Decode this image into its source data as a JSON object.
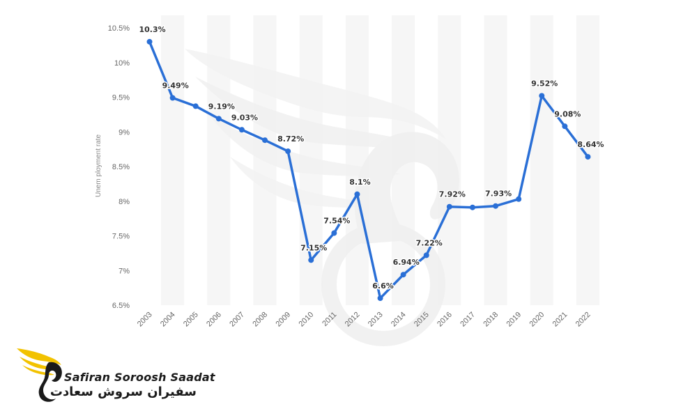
{
  "chart_data": {
    "type": "line",
    "ylabel": "Unem ployment rate",
    "ylim": [
      6.5,
      10.5
    ],
    "yticks": [
      {
        "value": 6.5,
        "label": "6.5%"
      },
      {
        "value": 7,
        "label": "7%"
      },
      {
        "value": 7.5,
        "label": "7.5%"
      },
      {
        "value": 8,
        "label": "8%"
      },
      {
        "value": 8.5,
        "label": "8.5%"
      },
      {
        "value": 9,
        "label": "9%"
      },
      {
        "value": 9.5,
        "label": "9.5%"
      },
      {
        "value": 10,
        "label": "10%"
      },
      {
        "value": 10.5,
        "label": "10.5%"
      }
    ],
    "x": [
      "2003",
      "2004",
      "2005",
      "2006",
      "2007",
      "2008",
      "2009",
      "2010",
      "2011",
      "2012",
      "2013",
      "2014",
      "2015",
      "2016",
      "2017",
      "2018",
      "2019",
      "2020",
      "2021",
      "2022"
    ],
    "series": [
      {
        "color": "#2a6fd6",
        "values": [
          10.3,
          9.49,
          9.37,
          9.19,
          9.03,
          8.88,
          8.72,
          7.15,
          7.54,
          8.1,
          6.6,
          6.94,
          7.22,
          7.92,
          7.91,
          7.93,
          8.03,
          9.52,
          9.08,
          8.64
        ],
        "labels": [
          "10.3%",
          "9.49%",
          "",
          "9.19%",
          "9.03%",
          "",
          "8.72%",
          "7.15%",
          "7.54%",
          "8.1%",
          "6.6%",
          "6.94%",
          "7.22%",
          "7.92%",
          "",
          "7.93%",
          "",
          "9.52%",
          "9.08%",
          "8.64%"
        ]
      }
    ],
    "grid": "alternating vertical bands",
    "legend": "none"
  },
  "brand": {
    "name": "Safiran Soroosh Saadat",
    "name_fa": "سفیران سروش سعادت",
    "logo_color": "#f2c200",
    "icon": "winged-bird-logo"
  }
}
